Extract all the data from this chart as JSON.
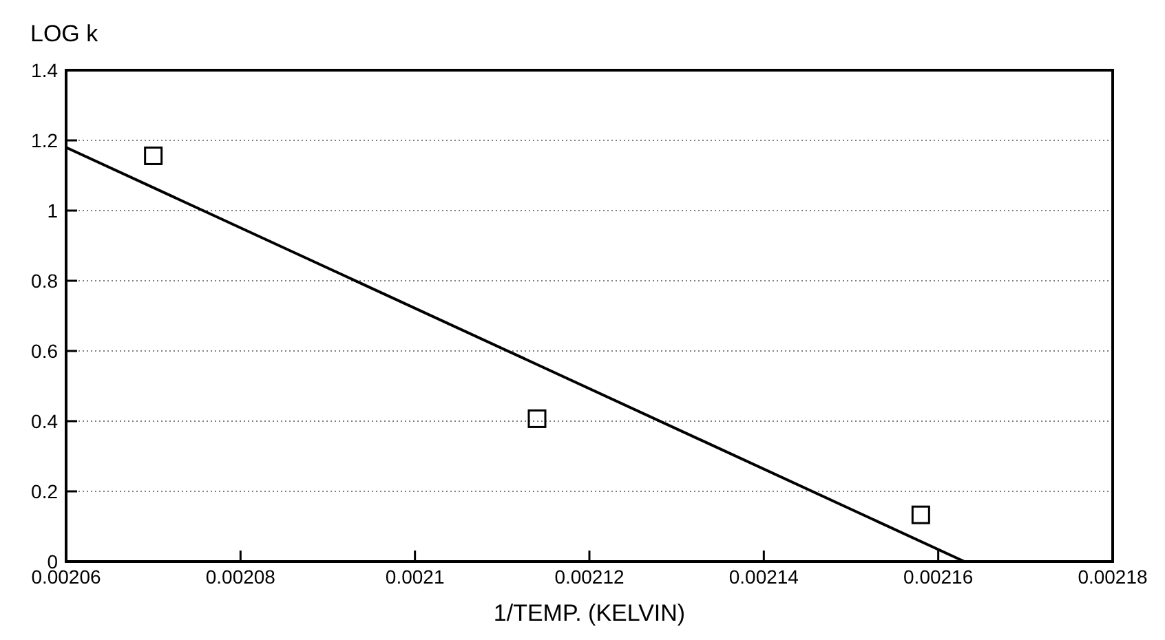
{
  "chart_data": {
    "type": "scatter",
    "ylabel": "LOG k",
    "xlabel": "1/TEMP. (KELVIN)",
    "series": [
      {
        "type": "scatter",
        "color": "#000000",
        "marker": "square",
        "x": [
          0.00207,
          0.002114,
          0.002158
        ],
        "values": [
          1.156,
          0.407,
          0.133
        ]
      },
      {
        "type": "line",
        "color": "#000000",
        "marker": "none",
        "x": [
          0.00206,
          0.002163
        ],
        "values": [
          1.18,
          0
        ]
      }
    ],
    "xlim": [
      0.00206,
      0.00218
    ],
    "xticks": [
      0.00206,
      0.00208,
      0.0021,
      0.00212,
      0.00214,
      0.00216,
      0.00218
    ],
    "ylim": [
      0,
      1.4
    ],
    "yticks": [
      0,
      0.2,
      0.4,
      0.6,
      0.8,
      1,
      1.2,
      1.4
    ],
    "grid": "y"
  }
}
